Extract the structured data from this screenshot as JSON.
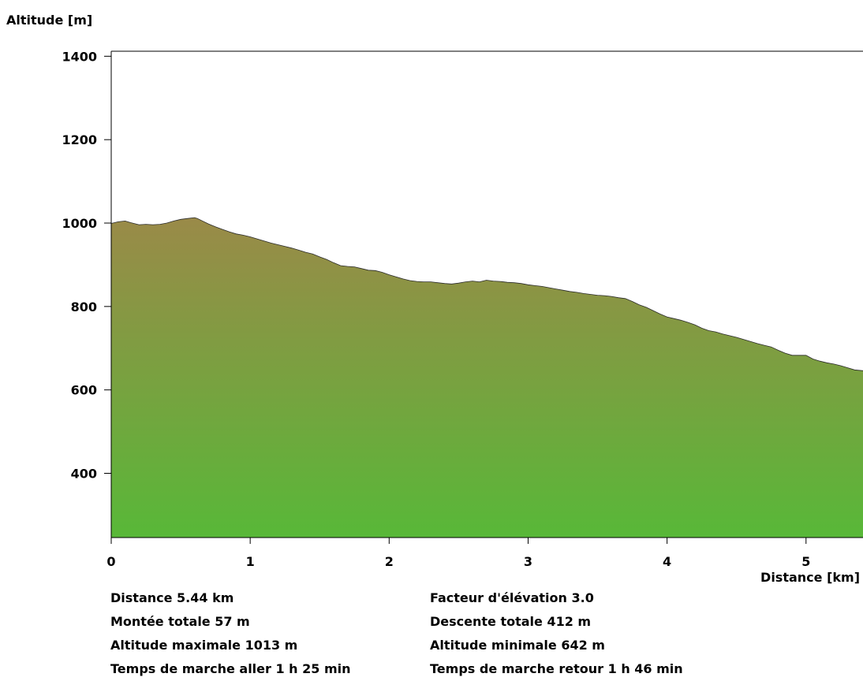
{
  "chart_data": {
    "type": "area",
    "ylabel": "Altitude [m]",
    "xlabel": "Distance [km]",
    "xlim": [
      0,
      5.41
    ],
    "ylim": [
      246,
      1412
    ],
    "x_ticks": [
      0,
      1,
      2,
      3,
      4,
      5
    ],
    "y_ticks": [
      400,
      600,
      800,
      1000,
      1200,
      1400
    ],
    "grid": false,
    "colors": {
      "top": "#9a8a48",
      "bottom": "#58b838",
      "outline": "#2a2a2a"
    },
    "x": [
      0,
      0.05,
      0.1,
      0.14,
      0.2,
      0.25,
      0.3,
      0.35,
      0.4,
      0.45,
      0.5,
      0.55,
      0.6,
      0.62,
      0.65,
      0.7,
      0.75,
      0.8,
      0.85,
      0.9,
      0.95,
      1.0,
      1.05,
      1.1,
      1.15,
      1.2,
      1.25,
      1.3,
      1.35,
      1.4,
      1.45,
      1.5,
      1.55,
      1.6,
      1.65,
      1.7,
      1.75,
      1.8,
      1.85,
      1.9,
      1.95,
      2.0,
      2.05,
      2.1,
      2.15,
      2.2,
      2.25,
      2.3,
      2.35,
      2.4,
      2.45,
      2.5,
      2.55,
      2.6,
      2.65,
      2.7,
      2.75,
      2.8,
      2.85,
      2.9,
      2.95,
      3.0,
      3.05,
      3.1,
      3.15,
      3.2,
      3.25,
      3.3,
      3.35,
      3.4,
      3.45,
      3.5,
      3.55,
      3.6,
      3.65,
      3.7,
      3.75,
      3.8,
      3.85,
      3.9,
      3.95,
      4.0,
      4.05,
      4.1,
      4.15,
      4.2,
      4.25,
      4.3,
      4.35,
      4.4,
      4.45,
      4.5,
      4.55,
      4.6,
      4.65,
      4.7,
      4.75,
      4.8,
      4.85,
      4.9,
      4.95,
      5.0,
      5.05,
      5.1,
      5.15,
      5.2,
      5.25,
      5.3,
      5.35,
      5.41
    ],
    "values": [
      999,
      1003,
      1005,
      1001,
      996,
      997,
      996,
      997,
      1000,
      1005,
      1009,
      1011,
      1013,
      1011,
      1006,
      998,
      991,
      985,
      979,
      974,
      971,
      967,
      962,
      957,
      952,
      948,
      944,
      940,
      935,
      930,
      926,
      919,
      913,
      905,
      898,
      896,
      895,
      891,
      887,
      886,
      882,
      876,
      871,
      866,
      862,
      860,
      859,
      859,
      857,
      855,
      854,
      856,
      859,
      861,
      859,
      863,
      861,
      860,
      858,
      857,
      855,
      852,
      850,
      848,
      845,
      842,
      839,
      836,
      834,
      831,
      829,
      827,
      826,
      824,
      821,
      819,
      812,
      804,
      798,
      790,
      782,
      775,
      771,
      767,
      762,
      756,
      748,
      742,
      739,
      734,
      730,
      726,
      721,
      716,
      711,
      707,
      703,
      695,
      688,
      683,
      683,
      683,
      674,
      669,
      665,
      662,
      658,
      653,
      648,
      646
    ]
  },
  "stats": {
    "left": [
      "Distance 5.44 km",
      "Montée totale  57 m",
      "Altitude maximale  1013 m",
      "Temps de marche aller  1 h 25 min"
    ],
    "right": [
      "Facteur d'élévation 3.0",
      "Descente totale  412 m",
      "Altitude minimale  642 m",
      "Temps de marche retour  1 h 46 min"
    ]
  }
}
